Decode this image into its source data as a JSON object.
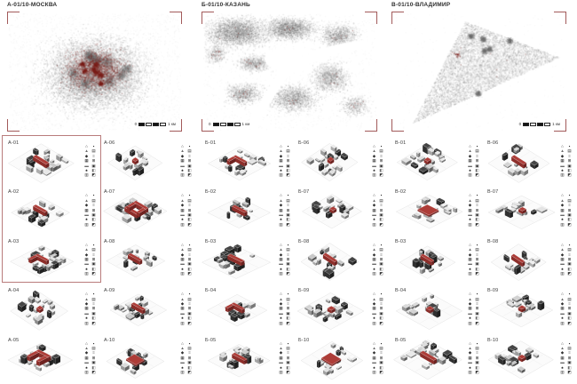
{
  "poster": {
    "maps": [
      {
        "id": "moscow",
        "title": "А-01/10-МОСКВА",
        "scale_bar": {
          "start": "0",
          "end": "1 км"
        }
      },
      {
        "id": "kazan",
        "title": "Б-01/10-КАЗАНЬ",
        "scale_bar": {
          "start": "0",
          "end": "1 км"
        }
      },
      {
        "id": "vladimir",
        "title": "В-01/10-ВЛАДИМИР",
        "scale_bar": {
          "start": "0",
          "end": "1 км"
        }
      }
    ],
    "block_groups": [
      {
        "city": "МОСКВА",
        "prefix": "А",
        "cells": [
          {
            "label": "А-01",
            "red_shape": "bar"
          },
          {
            "label": "А-02",
            "red_shape": "bar"
          },
          {
            "label": "А-03",
            "red_shape": "l"
          },
          {
            "label": "А-04",
            "red_shape": "dot"
          },
          {
            "label": "А-05",
            "red_shape": "u"
          },
          {
            "label": "А-06",
            "red_shape": "dot"
          },
          {
            "label": "А-07",
            "red_shape": "ring"
          },
          {
            "label": "А-08",
            "red_shape": "bar"
          },
          {
            "label": "А-09",
            "red_shape": "bar"
          },
          {
            "label": "А-10",
            "red_shape": "plate"
          }
        ]
      },
      {
        "city": "КАЗАНЬ",
        "prefix": "Б",
        "cells": [
          {
            "label": "Б-01",
            "red_shape": "l"
          },
          {
            "label": "Б-02",
            "red_shape": "bar"
          },
          {
            "label": "Б-03",
            "red_shape": "bar"
          },
          {
            "label": "Б-04",
            "red_shape": "l"
          },
          {
            "label": "Б-05",
            "red_shape": "bar"
          },
          {
            "label": "Б-06",
            "red_shape": "dot"
          },
          {
            "label": "Б-07",
            "red_shape": "dot"
          },
          {
            "label": "Б-08",
            "red_shape": "bar"
          },
          {
            "label": "Б-09",
            "red_shape": "dot"
          },
          {
            "label": "Б-10",
            "red_shape": "plate"
          }
        ]
      },
      {
        "city": "ВЛАДИМИР",
        "prefix": "В",
        "cells": [
          {
            "label": "В-01",
            "red_shape": "dot"
          },
          {
            "label": "В-02",
            "red_shape": "plate"
          },
          {
            "label": "В-03",
            "red_shape": "bar"
          },
          {
            "label": "В-04",
            "red_shape": "dot"
          },
          {
            "label": "В-05",
            "red_shape": "bar"
          },
          {
            "label": "В-06",
            "red_shape": "bar"
          },
          {
            "label": "В-07",
            "red_shape": "dot"
          },
          {
            "label": "В-08",
            "red_shape": "bar"
          },
          {
            "label": "В-09",
            "red_shape": "dot"
          },
          {
            "label": "В-10",
            "red_shape": "dot"
          }
        ]
      }
    ],
    "selection_frame": {
      "contains": [
        "А-01",
        "А-02",
        "А-03"
      ],
      "color": "#b97c7c"
    },
    "legend_glyphs": [
      "⌂",
      "▪",
      "▲",
      "▤",
      "◆",
      "≡",
      "▦",
      "⊞",
      "▬",
      "▣",
      "♠",
      "◧",
      "▥",
      "◩"
    ],
    "colors": {
      "highlight_red_top": "#ad3d38",
      "highlight_red_side": "#6e2220",
      "highlight_red_front": "#8d2e2a",
      "map_red": "#7a1d18",
      "map_gray": "#6b6b6b",
      "bracket_red": "#a25a5a",
      "frame_red": "#b97c7c"
    }
  }
}
